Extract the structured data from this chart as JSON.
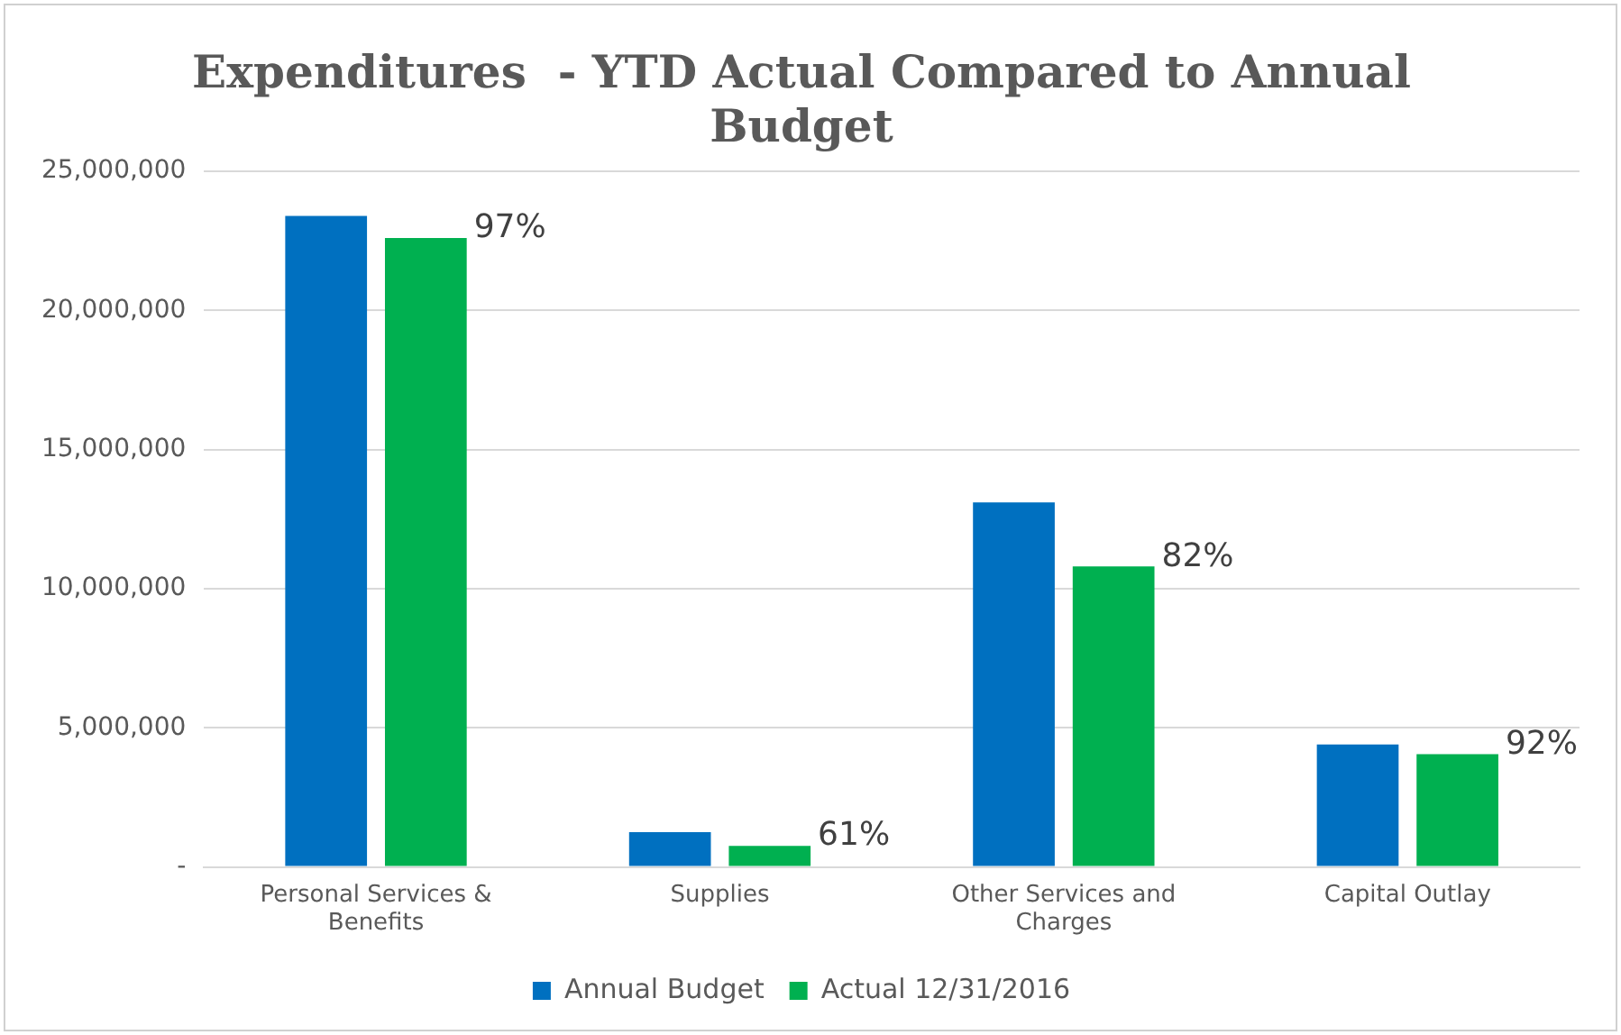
{
  "chart_data": {
    "type": "bar",
    "title": "Expenditures  - YTD Actual Compared to Annual Budget",
    "categories": [
      "Personal Services & Benefits",
      "Supplies",
      "Other Services and Charges",
      "Capital Outlay"
    ],
    "series": [
      {
        "name": "Annual Budget",
        "color": "#0070c0",
        "values": [
          23400000,
          1250000,
          13100000,
          4400000
        ]
      },
      {
        "name": "Actual 12/31/2016",
        "color": "#00b050",
        "values": [
          22600000,
          760000,
          10800000,
          4050000
        ]
      }
    ],
    "annotations": [
      "97%",
      "61%",
      "82%",
      "92%"
    ],
    "ylim": [
      0,
      25000000
    ],
    "yticks": [
      {
        "value": 0,
        "label": "-"
      },
      {
        "value": 5000000,
        "label": "5,000,000"
      },
      {
        "value": 10000000,
        "label": "10,000,000"
      },
      {
        "value": 15000000,
        "label": "15,000,000"
      },
      {
        "value": 20000000,
        "label": "20,000,000"
      },
      {
        "value": 25000000,
        "label": "25,000,000"
      }
    ],
    "grid": "y",
    "legend": "bottom"
  }
}
